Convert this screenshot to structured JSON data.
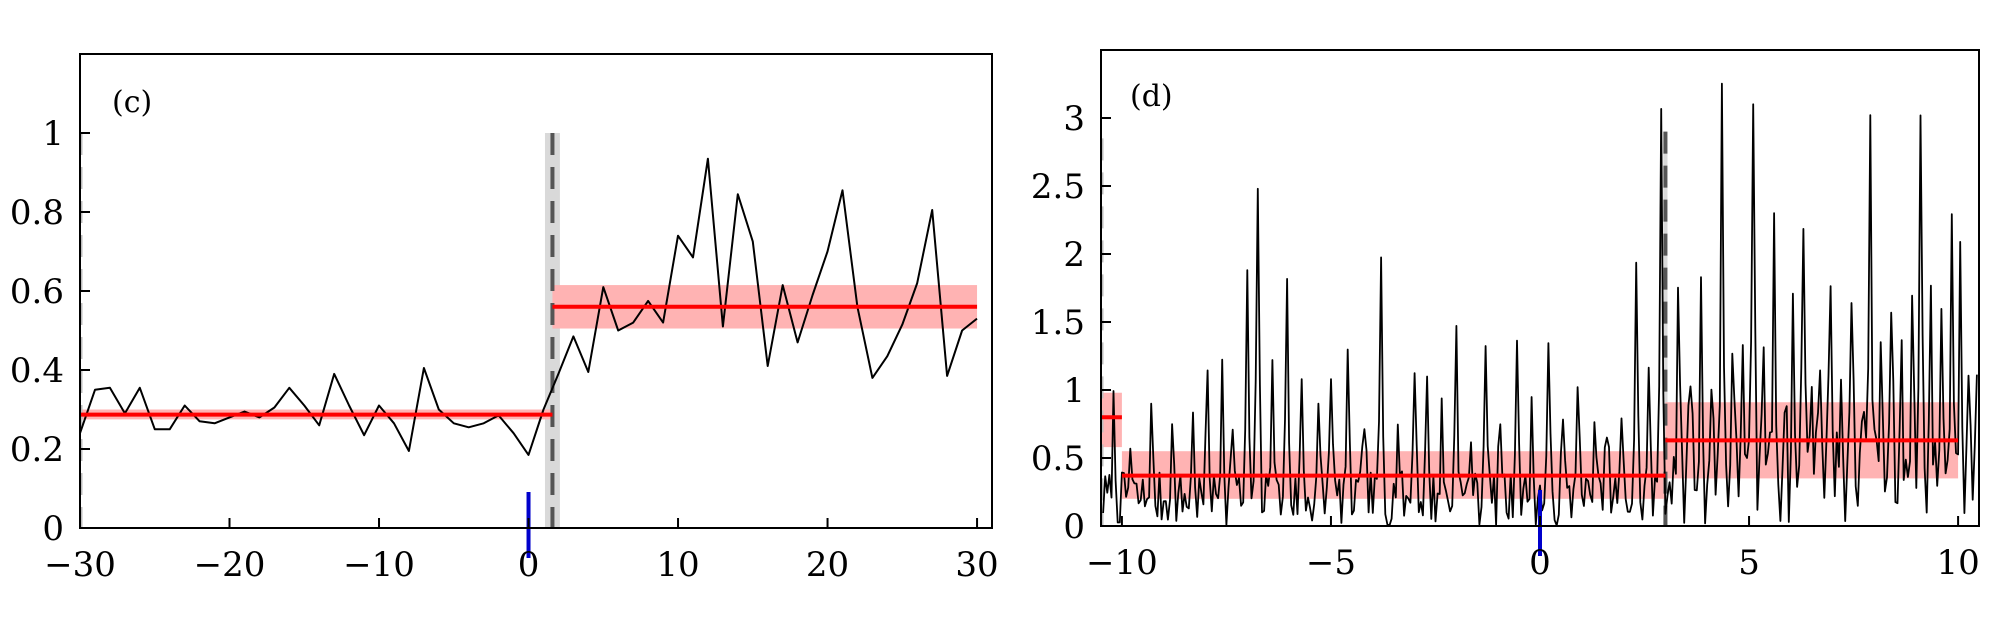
{
  "colors": {
    "signal": "#000000",
    "mean_line": "#ff0000",
    "mean_band": "#ffb3b3",
    "changepoint_line": "#555555",
    "changepoint_band": "#d9d9d9",
    "origin_marker": "#0000cc"
  },
  "chart_data": [
    {
      "type": "line",
      "panel_label": "(c)",
      "xlim": [
        -30,
        31
      ],
      "ylim": [
        0,
        1.2
      ],
      "x_ticks": [
        -30,
        -20,
        -10,
        0,
        10,
        20,
        30
      ],
      "x_tick_labels": [
        "−30",
        "−20",
        "−10",
        "0",
        "10",
        "20",
        "30"
      ],
      "y_ticks": [
        0,
        0.2,
        0.4,
        0.6,
        0.8,
        1
      ],
      "y_tick_labels": [
        "0",
        "0.2",
        "0.4",
        "0.6",
        "0.8",
        "1"
      ],
      "grid": false,
      "origin_marker_x": 0,
      "signal": {
        "x": [
          -30,
          -29,
          -28,
          -27,
          -26,
          -25,
          -24,
          -23,
          -22,
          -21,
          -20,
          -19,
          -18,
          -17,
          -16,
          -15,
          -14,
          -13,
          -12,
          -11,
          -10,
          -9,
          -8,
          -7,
          -6,
          -5,
          -4,
          -3,
          -2,
          -1,
          0,
          1,
          2,
          3,
          4,
          5,
          6,
          7,
          8,
          9,
          10,
          11,
          12,
          13,
          14,
          15,
          16,
          17,
          18,
          19,
          20,
          21,
          22,
          23,
          24,
          25,
          26,
          27,
          28,
          29,
          30
        ],
        "y": [
          0.24,
          0.35,
          0.355,
          0.29,
          0.355,
          0.25,
          0.25,
          0.31,
          0.27,
          0.265,
          0.28,
          0.295,
          0.28,
          0.305,
          0.355,
          0.31,
          0.26,
          0.39,
          0.31,
          0.235,
          0.31,
          0.265,
          0.195,
          0.405,
          0.3,
          0.265,
          0.255,
          0.265,
          0.285,
          0.24,
          0.185,
          0.3,
          0.39,
          0.485,
          0.395,
          0.61,
          0.5,
          0.52,
          0.575,
          0.52,
          0.74,
          0.685,
          0.935,
          0.51,
          0.845,
          0.725,
          0.41,
          0.615,
          0.47,
          0.59,
          0.7,
          0.855,
          0.56,
          0.38,
          0.435,
          0.515,
          0.62,
          0.805,
          0.385,
          0.5,
          0.53
        ]
      },
      "segments": [
        {
          "x_start": -30,
          "x_end": 1.6,
          "mean": 0.287,
          "band_low": 0.275,
          "band_high": 0.3
        },
        {
          "x_start": 1.6,
          "x_end": 30,
          "mean": 0.56,
          "band_low": 0.505,
          "band_high": 0.615
        }
      ],
      "changepoints": [
        {
          "x": 1.6,
          "band_from": 1.1,
          "band_to": 2.1,
          "y_top": 1.0
        }
      ],
      "edge_dashed_line": {
        "x": -30,
        "y_top": 1.0
      }
    },
    {
      "type": "line",
      "panel_label": "(d)",
      "xlim": [
        -10.5,
        10.5
      ],
      "ylim": [
        0,
        3.5
      ],
      "x_ticks": [
        -10,
        -5,
        0,
        5,
        10
      ],
      "x_tick_labels": [
        "−10",
        "−5",
        "0",
        "5",
        "10"
      ],
      "y_ticks": [
        0,
        0.5,
        1,
        1.5,
        2,
        2.5,
        3
      ],
      "y_tick_labels": [
        "0",
        "0.5",
        "1",
        "1.5",
        "2",
        "2.5",
        "3"
      ],
      "grid": false,
      "origin_marker_x": 0,
      "signal_generator": {
        "x_start": -10.45,
        "x_end": 10.45,
        "step": 0.05,
        "seed": 7,
        "base_before": 0.25,
        "base_after": 0.45,
        "switch_x": 3.0,
        "peaks": [
          [
            -10.2,
            0.65
          ],
          [
            -9.8,
            0.35
          ],
          [
            -9.3,
            0.6
          ],
          [
            -8.8,
            0.5
          ],
          [
            -8.3,
            0.55
          ],
          [
            -7.95,
            0.95
          ],
          [
            -7.6,
            1.05
          ],
          [
            -7.35,
            0.65
          ],
          [
            -7.0,
            1.55
          ],
          [
            -6.75,
            2.35
          ],
          [
            -6.4,
            1.2
          ],
          [
            -6.05,
            1.65
          ],
          [
            -5.7,
            0.8
          ],
          [
            -5.3,
            0.6
          ],
          [
            -5.0,
            1.05
          ],
          [
            -4.6,
            0.9
          ],
          [
            -4.2,
            0.7
          ],
          [
            -3.8,
            1.75
          ],
          [
            -3.4,
            0.6
          ],
          [
            -3.0,
            1.1
          ],
          [
            -2.7,
            0.8
          ],
          [
            -2.35,
            0.6
          ],
          [
            -2.0,
            1.35
          ],
          [
            -1.65,
            0.5
          ],
          [
            -1.3,
            1.3
          ],
          [
            -0.95,
            0.65
          ],
          [
            -0.55,
            1.35
          ],
          [
            -0.2,
            0.6
          ],
          [
            0.2,
            1.0
          ],
          [
            0.55,
            0.55
          ],
          [
            0.9,
            1.0
          ],
          [
            1.3,
            0.6
          ],
          [
            1.6,
            0.65
          ],
          [
            1.95,
            0.5
          ],
          [
            2.3,
            1.65
          ],
          [
            2.6,
            0.9
          ],
          [
            2.9,
            2.9
          ],
          [
            3.3,
            1.15
          ],
          [
            3.6,
            0.9
          ],
          [
            3.85,
            1.25
          ],
          [
            4.1,
            0.65
          ],
          [
            4.35,
            2.85
          ],
          [
            4.6,
            0.95
          ],
          [
            4.85,
            1.2
          ],
          [
            5.1,
            2.55
          ],
          [
            5.35,
            1.05
          ],
          [
            5.6,
            1.95
          ],
          [
            5.85,
            0.65
          ],
          [
            6.05,
            1.15
          ],
          [
            6.3,
            2.05
          ],
          [
            6.5,
            1.0
          ],
          [
            6.7,
            1.05
          ],
          [
            6.95,
            1.75
          ],
          [
            7.2,
            0.85
          ],
          [
            7.45,
            1.3
          ],
          [
            7.7,
            0.75
          ],
          [
            7.9,
            2.8
          ],
          [
            8.15,
            1.0
          ],
          [
            8.4,
            1.2
          ],
          [
            8.65,
            0.7
          ],
          [
            8.9,
            1.35
          ],
          [
            9.1,
            3.0
          ],
          [
            9.35,
            1.1
          ],
          [
            9.6,
            1.3
          ],
          [
            9.85,
            2.15
          ],
          [
            10.05,
            1.4
          ],
          [
            10.25,
            0.8
          ],
          [
            10.45,
            0.85
          ]
        ]
      },
      "segments": [
        {
          "x_start": -10.5,
          "x_end": -10.0,
          "mean": 0.8,
          "band_low": 0.58,
          "band_high": 0.98
        },
        {
          "x_start": -10.0,
          "x_end": 3.0,
          "mean": 0.37,
          "band_low": 0.2,
          "band_high": 0.55
        },
        {
          "x_start": 3.0,
          "x_end": 10.0,
          "mean": 0.63,
          "band_low": 0.35,
          "band_high": 0.91
        }
      ],
      "changepoints": [
        {
          "x": 3.0,
          "band_from": 2.95,
          "band_to": 3.05,
          "y_top": 2.9
        }
      ],
      "edge_dashed_line": {
        "x": -10.5,
        "y_top": 2.85
      }
    }
  ]
}
